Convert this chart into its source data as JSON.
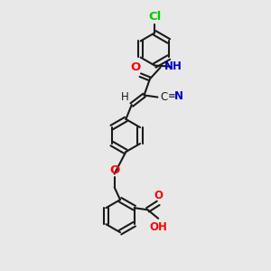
{
  "background_color": "#e8e8e8",
  "bond_color": "#1a1a1a",
  "atom_colors": {
    "O": "#ff0000",
    "N": "#0000cc",
    "Cl": "#00cc00",
    "C": "#1a1a1a",
    "H": "#1a1a1a"
  },
  "figsize": [
    3.0,
    3.0
  ],
  "dpi": 100
}
